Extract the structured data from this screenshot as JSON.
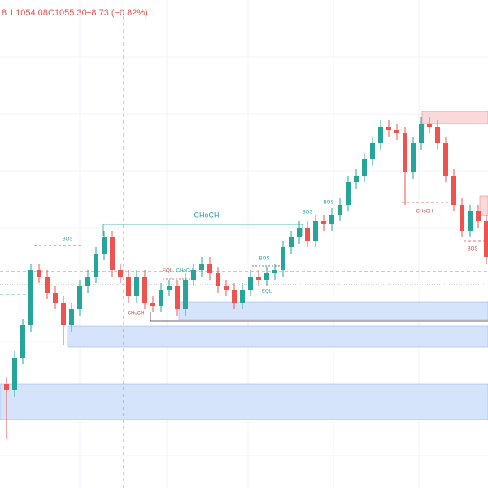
{
  "chart_data": {
    "type": "candlestick",
    "header": [
      "8",
      "L1054.08",
      "C1055.30",
      "−8.73 (−0.82%)"
    ],
    "open": [
      1032,
      1030,
      1040,
      1050,
      1067,
      1065,
      1060,
      1057,
      1050,
      1055,
      1062,
      1065,
      1072,
      1077,
      1067,
      1065,
      1059,
      1065,
      1057,
      1056,
      1061,
      1062,
      1055,
      1064,
      1067,
      1069,
      1066,
      1062,
      1061,
      1057,
      1061,
      1065,
      1064,
      1066,
      1067,
      1074,
      1077,
      1080,
      1076,
      1082,
      1081,
      1084,
      1087,
      1094,
      1096,
      1101,
      1106,
      1111,
      1110,
      1109,
      1097,
      1106,
      1112,
      1111,
      1106,
      1096,
      1087,
      1079,
      1085,
      1082
    ],
    "high": [
      1034,
      1042,
      1052,
      1069,
      1069,
      1067,
      1062,
      1059,
      1057,
      1064,
      1067,
      1074,
      1079,
      1079,
      1069,
      1067,
      1067,
      1067,
      1059,
      1063,
      1064,
      1064,
      1066,
      1069,
      1071,
      1071,
      1068,
      1064,
      1063,
      1063,
      1067,
      1067,
      1068,
      1069,
      1076,
      1079,
      1082,
      1082,
      1084,
      1084,
      1086,
      1089,
      1096,
      1098,
      1103,
      1108,
      1113,
      1113,
      1112,
      1111,
      1108,
      1114,
      1114,
      1113,
      1108,
      1098,
      1089,
      1087,
      1087,
      1084
    ],
    "low": [
      1015,
      1028,
      1038,
      1048,
      1063,
      1058,
      1055,
      1044,
      1048,
      1053,
      1060,
      1063,
      1070,
      1065,
      1063,
      1057,
      1057,
      1055,
      1054,
      1054,
      1059,
      1053,
      1053,
      1062,
      1065,
      1064,
      1060,
      1059,
      1055,
      1055,
      1059,
      1062,
      1062,
      1064,
      1065,
      1072,
      1075,
      1074,
      1074,
      1079,
      1079,
      1082,
      1085,
      1092,
      1094,
      1099,
      1104,
      1108,
      1107,
      1087,
      1095,
      1104,
      1109,
      1104,
      1094,
      1085,
      1077,
      1077,
      1080,
      1069
    ],
    "close": [
      1030,
      1040,
      1050,
      1067,
      1065,
      1060,
      1057,
      1050,
      1055,
      1062,
      1065,
      1072,
      1077,
      1067,
      1065,
      1059,
      1065,
      1057,
      1056,
      1061,
      1062,
      1055,
      1064,
      1067,
      1069,
      1066,
      1062,
      1061,
      1057,
      1061,
      1065,
      1064,
      1066,
      1067,
      1074,
      1077,
      1080,
      1076,
      1082,
      1081,
      1084,
      1087,
      1094,
      1096,
      1101,
      1106,
      1111,
      1110,
      1109,
      1097,
      1106,
      1112,
      1111,
      1106,
      1096,
      1087,
      1079,
      1085,
      1082,
      1071
    ],
    "ylim": [
      1000,
      1150
    ],
    "up_color": "#26a69a",
    "down_color": "#ef5350",
    "annotations": [
      "CHoCH",
      "BOS",
      "BOS",
      "BOS",
      "BOS",
      "EQL",
      "CHoCH",
      "CHoCH",
      "EQL",
      "CHoCH",
      "BOS"
    ]
  }
}
